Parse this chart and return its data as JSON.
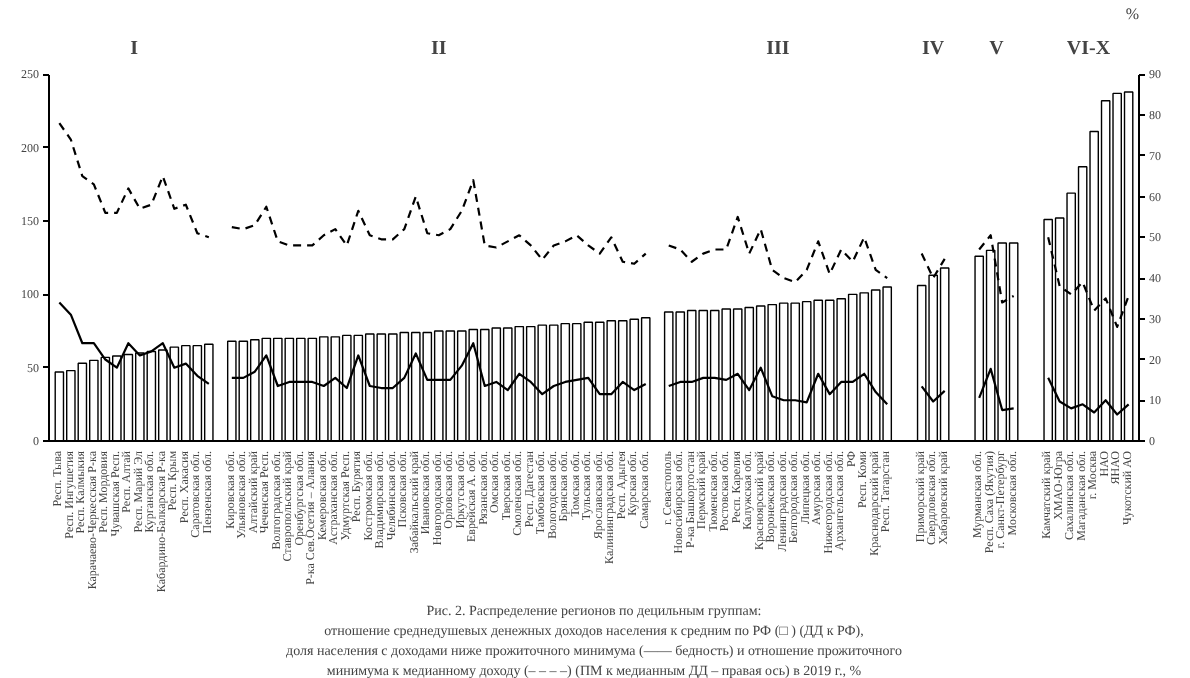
{
  "chart_data": {
    "type": "bar",
    "title": "Рис. 2. Распределение регионов по децильным группам:\nотношение среднедушевых денежных доходов населения к средним по РФ (□ ) (ДД к РФ),\nдоля населения с доходами ниже прожиточного минимума (—— бедность) и отношение прожиточного\nминимума к медианному доходу (– – – –) (ПМ к медианным ДД – правая ось) в 2019 г., %",
    "y2label": "%",
    "annotations": [
      "I",
      "II",
      "III",
      "IV",
      "V",
      "VI-X"
    ],
    "categories": [
      "Респ. Тыва",
      "Респ. Ингушетия",
      "Респ. Калмыкия",
      "Карачаево-Черкесская Р-ка",
      "Респ. Мордовия",
      "Чувашская Респ.",
      "Респ. Алтай",
      "Респ. Марий Эл",
      "Курганская обл.",
      "Кабардино-Балкарская Р-ка",
      "Респ. Крым",
      "Респ. Хакасия",
      "Саратовская обл.",
      "Пензенская обл.",
      null,
      "Кировская обл.",
      "Ульяновская обл.",
      "Алтайский край",
      "Чеченская Респ.",
      "Волгоградская обл.",
      "Ставропольский край",
      "Оренбургская обл.",
      "Р-ка Сев.Осетия – Алания",
      "Кемеровская обл.",
      "Астраханская обл.",
      "Удмуртская Респ.",
      "Респ. Бурятия",
      "Костромская обл.",
      "Владимирская обл.",
      "Челябинская обл.",
      "Псковская обл.",
      "Забайкальский край",
      "Ивановская обл.",
      "Новгородская обл.",
      "Орловская обл.",
      "Иркутская обл.",
      "Еврейская А. обл.",
      "Рязанская обл.",
      "Омская обл.",
      "Тверская обл.",
      "Смоленская обл.",
      "Респ. Дагестан",
      "Тамбовская обл.",
      "Вологодская обл.",
      "Брянская обл.",
      "Томская обл.",
      "Тульская обл.",
      "Ярославская обл.",
      "Калининградская обл.",
      "Респ. Адыгея",
      "Курская обл.",
      "Самарская обл.",
      null,
      "г. Севастополь",
      "Новосибирская обл.",
      "Р-ка Башкортостан",
      "Пермский край",
      "Тюменская обл.",
      "Ростовская обл.",
      "Респ. Карелия",
      "Калужская обл.",
      "Красноярский край",
      "Воронежская обл.",
      "Ленинградская обл.",
      "Белгородская обл.",
      "Липецкая обл.",
      "Амурская обл.",
      "Нижегородская обл.",
      "Архангельская обл.",
      "РФ",
      "Респ. Коми",
      "Краснодарский край",
      "Респ. Татарстан",
      null,
      null,
      "Приморский край",
      "Свердловская обл.",
      "Хабаровский край",
      null,
      null,
      "Мурманская обл.",
      "Респ. Саха (Якутия)",
      "г. Санкт-Петербург",
      "Московская обл.",
      null,
      null,
      "Камчатский край",
      "ХМАО-Югра",
      "Сахалинская обл.",
      "Магаданская обл.",
      "г. Москва",
      "НАО",
      "ЯНАО",
      "Чукотский АО"
    ],
    "series": [
      {
        "type": "bar",
        "color": "#ffffff",
        "values": [
          47,
          48,
          53,
          55,
          57,
          58,
          59,
          60,
          61,
          62,
          64,
          65,
          65,
          66,
          null,
          68,
          68,
          69,
          70,
          70,
          70,
          70,
          70,
          71,
          71,
          72,
          72,
          73,
          73,
          73,
          74,
          74,
          74,
          75,
          75,
          75,
          76,
          76,
          77,
          77,
          78,
          78,
          79,
          79,
          80,
          80,
          81,
          81,
          82,
          82,
          83,
          84,
          null,
          88,
          88,
          89,
          89,
          89,
          90,
          90,
          91,
          92,
          93,
          94,
          94,
          95,
          96,
          96,
          97,
          100,
          101,
          103,
          105,
          null,
          null,
          106,
          113,
          118,
          null,
          null,
          126,
          130,
          135,
          135,
          null,
          null,
          151,
          152,
          169,
          187,
          211,
          232,
          237,
          238
        ]
      },
      {
        "type": "line",
        "axis": "y2",
        "color": "#000000",
        "line_style": "solid",
        "values": [
          34,
          31,
          24,
          24,
          20,
          18,
          24,
          21,
          22,
          24,
          18,
          19,
          16,
          14,
          null,
          15.5,
          15.5,
          17,
          21,
          13.5,
          14.5,
          14.5,
          14.5,
          13.5,
          15.5,
          13,
          21,
          13.5,
          13,
          13,
          15.5,
          21.5,
          15,
          15,
          15,
          18.5,
          24,
          13.5,
          14.5,
          12.5,
          16.5,
          14.5,
          11.5,
          13.5,
          14.5,
          15,
          15.5,
          11.5,
          11.5,
          14.5,
          12.5,
          14,
          null,
          13.5,
          14.5,
          14.5,
          15.5,
          15.5,
          15,
          16.5,
          12.5,
          18,
          11,
          10,
          10,
          9.5,
          16.5,
          11.5,
          14.5,
          14.5,
          16.5,
          12,
          9,
          null,
          null,
          13.4,
          9.7,
          12.3,
          null,
          null,
          10.6,
          17.7,
          7.6,
          8,
          null,
          null,
          15.5,
          9.7,
          8,
          9,
          7,
          10,
          6.5,
          9
        ]
      },
      {
        "type": "line",
        "axis": "y2",
        "color": "#000000",
        "line_style": "dashed",
        "values": [
          78,
          74,
          65,
          63,
          56,
          56,
          62,
          57,
          58,
          65,
          57,
          58,
          51,
          50,
          null,
          52.5,
          52,
          53,
          57.5,
          49,
          48,
          48,
          48,
          50.5,
          52,
          48,
          56.5,
          50.5,
          49.5,
          49.5,
          52,
          60,
          51,
          50.5,
          52,
          56.5,
          64,
          48,
          47.5,
          49,
          50.5,
          48,
          44.5,
          48,
          49,
          50.5,
          48,
          46,
          50,
          44,
          43.5,
          46,
          null,
          48,
          47,
          44,
          46,
          47,
          47,
          55,
          46,
          52,
          42,
          40,
          39,
          42,
          49,
          41,
          47,
          44,
          50,
          42,
          40,
          null,
          null,
          46,
          40,
          44.7,
          null,
          null,
          47,
          50.5,
          34,
          35.6,
          null,
          null,
          50,
          38,
          36,
          39,
          32,
          35,
          28,
          35.6
        ]
      }
    ],
    "ylim": [
      0,
      250
    ],
    "yticks": [
      0,
      50,
      100,
      150,
      200,
      250
    ],
    "y2lim": [
      0,
      90
    ],
    "y2ticks": [
      0,
      10,
      20,
      30,
      40,
      50,
      60,
      70,
      80,
      90
    ]
  }
}
